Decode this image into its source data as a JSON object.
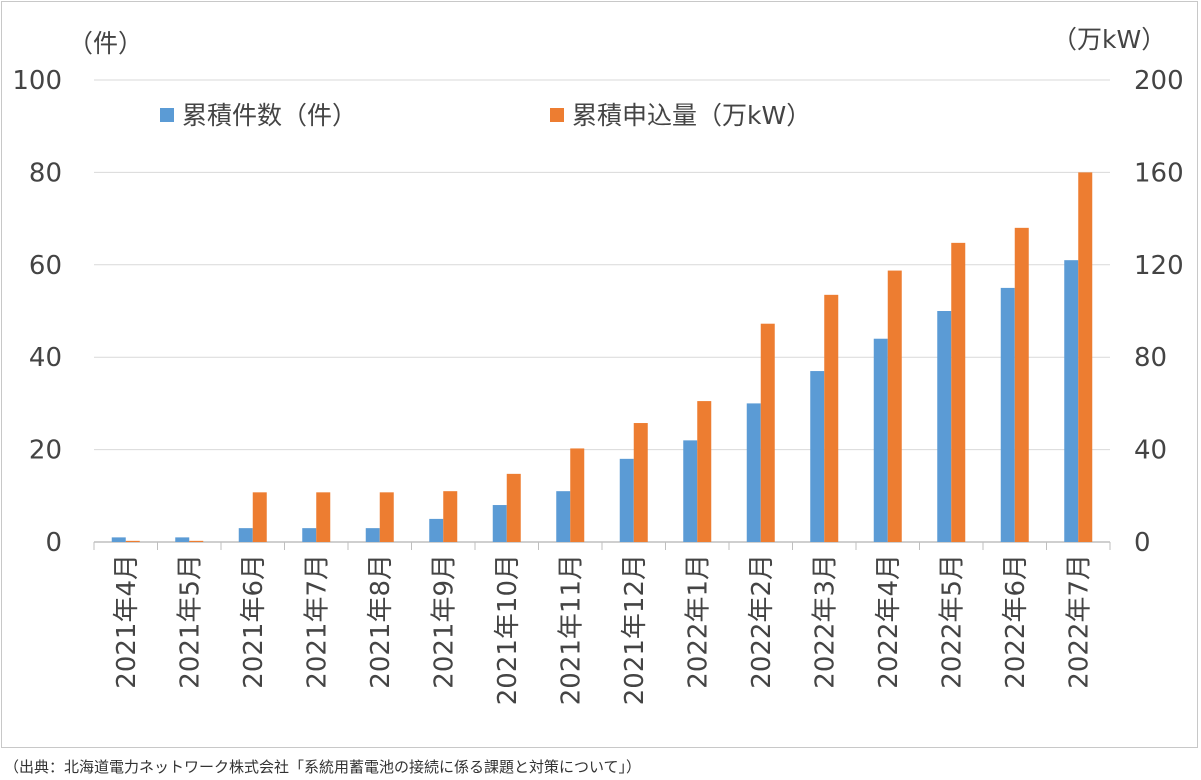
{
  "chart_data": {
    "type": "bar",
    "categories": [
      "2021年4月",
      "2021年5月",
      "2021年6月",
      "2021年7月",
      "2021年8月",
      "2021年9月",
      "2021年10月",
      "2021年11月",
      "2021年12月",
      "2022年1月",
      "2022年2月",
      "2022年3月",
      "2022年4月",
      "2022年5月",
      "2022年6月",
      "2022年7月"
    ],
    "series": [
      {
        "name": "累積件数（件）",
        "axis": "left",
        "color": "#5b9bd5",
        "values": [
          1,
          1,
          3,
          3,
          3,
          5,
          8,
          11,
          18,
          22,
          30,
          37,
          44,
          50,
          55,
          61
        ]
      },
      {
        "name": "累積申込量（万kW）",
        "axis": "right",
        "color": "#ed7d31",
        "values": [
          0.5,
          0.5,
          21.5,
          21.5,
          21.5,
          22,
          29.5,
          40.5,
          51.5,
          61,
          94.5,
          107,
          117.5,
          129.5,
          136,
          160
        ]
      }
    ],
    "y_left": {
      "unit_label": "（件）",
      "ylim": [
        0,
        100
      ],
      "ticks": [
        0,
        20,
        40,
        60,
        80,
        100
      ]
    },
    "y_right": {
      "unit_label": "（万kW）",
      "ylim": [
        0,
        200
      ],
      "ticks": [
        0,
        40,
        80,
        120,
        160,
        200
      ]
    },
    "grid": true,
    "legend_position": "top-left"
  },
  "source_note": "（出典：北海道電力ネットワーク株式会社「系統用蓄電池の接続に係る課題と対策について」）"
}
